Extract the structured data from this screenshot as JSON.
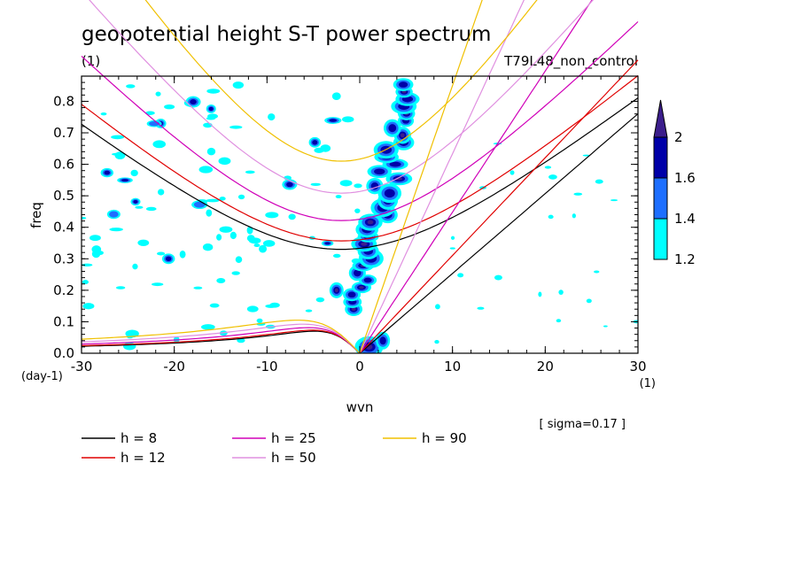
{
  "chart_data": {
    "type": "heatmap",
    "title": "geopotential height S-T power spectrum",
    "subtitle_left": "(1)",
    "subtitle_right": "T79L48_non_control",
    "xlabel": "wvn",
    "ylabel": "freq",
    "x_unit": "(1)",
    "y_unit": "(day-1)",
    "xlim": [
      -30,
      30
    ],
    "ylim": [
      0,
      0.88
    ],
    "x_ticks": [
      -30,
      -20,
      -10,
      0,
      10,
      20,
      30
    ],
    "x_tick_labels": [
      "-30",
      "-20",
      "-10",
      "0",
      "10",
      "20",
      "30"
    ],
    "y_ticks": [
      0,
      0.1,
      0.2,
      0.3,
      0.4,
      0.5,
      0.6,
      0.7,
      0.8
    ],
    "y_tick_labels": [
      "0.0",
      "0.1",
      "0.2",
      "0.3",
      "0.4",
      "0.5",
      "0.6",
      "0.7",
      "0.8"
    ],
    "annotation": "[ sigma=0.17 ]",
    "colorbar": {
      "levels": [
        1.2,
        1.4,
        1.6,
        2
      ],
      "labels": [
        "1.2",
        "1.4",
        "1.6",
        "2"
      ],
      "colors": [
        "#00ffff",
        "#1e6fff",
        "#0000a8",
        "#3c1e8c"
      ]
    },
    "series": [
      {
        "name": "h =  8",
        "equivalent_depth": 8,
        "color": "#000000"
      },
      {
        "name": "h = 12",
        "equivalent_depth": 12,
        "color": "#e00000"
      },
      {
        "name": "h = 25",
        "equivalent_depth": 25,
        "color": "#d000b8"
      },
      {
        "name": "h = 50",
        "equivalent_depth": 50,
        "color": "#e090e0"
      },
      {
        "name": "h = 90",
        "equivalent_depth": 90,
        "color": "#f0c000"
      }
    ],
    "filled_regions": [
      {
        "level": 1.2,
        "k": [
          3,
          8
        ],
        "f": [
          0.02,
          0.86
        ]
      },
      {
        "level": 1.6,
        "k": [
          2,
          7
        ],
        "f": [
          0.15,
          0.82
        ]
      },
      {
        "level": 2,
        "k": [
          0,
          3
        ],
        "f": [
          0,
          0.06
        ]
      }
    ]
  }
}
